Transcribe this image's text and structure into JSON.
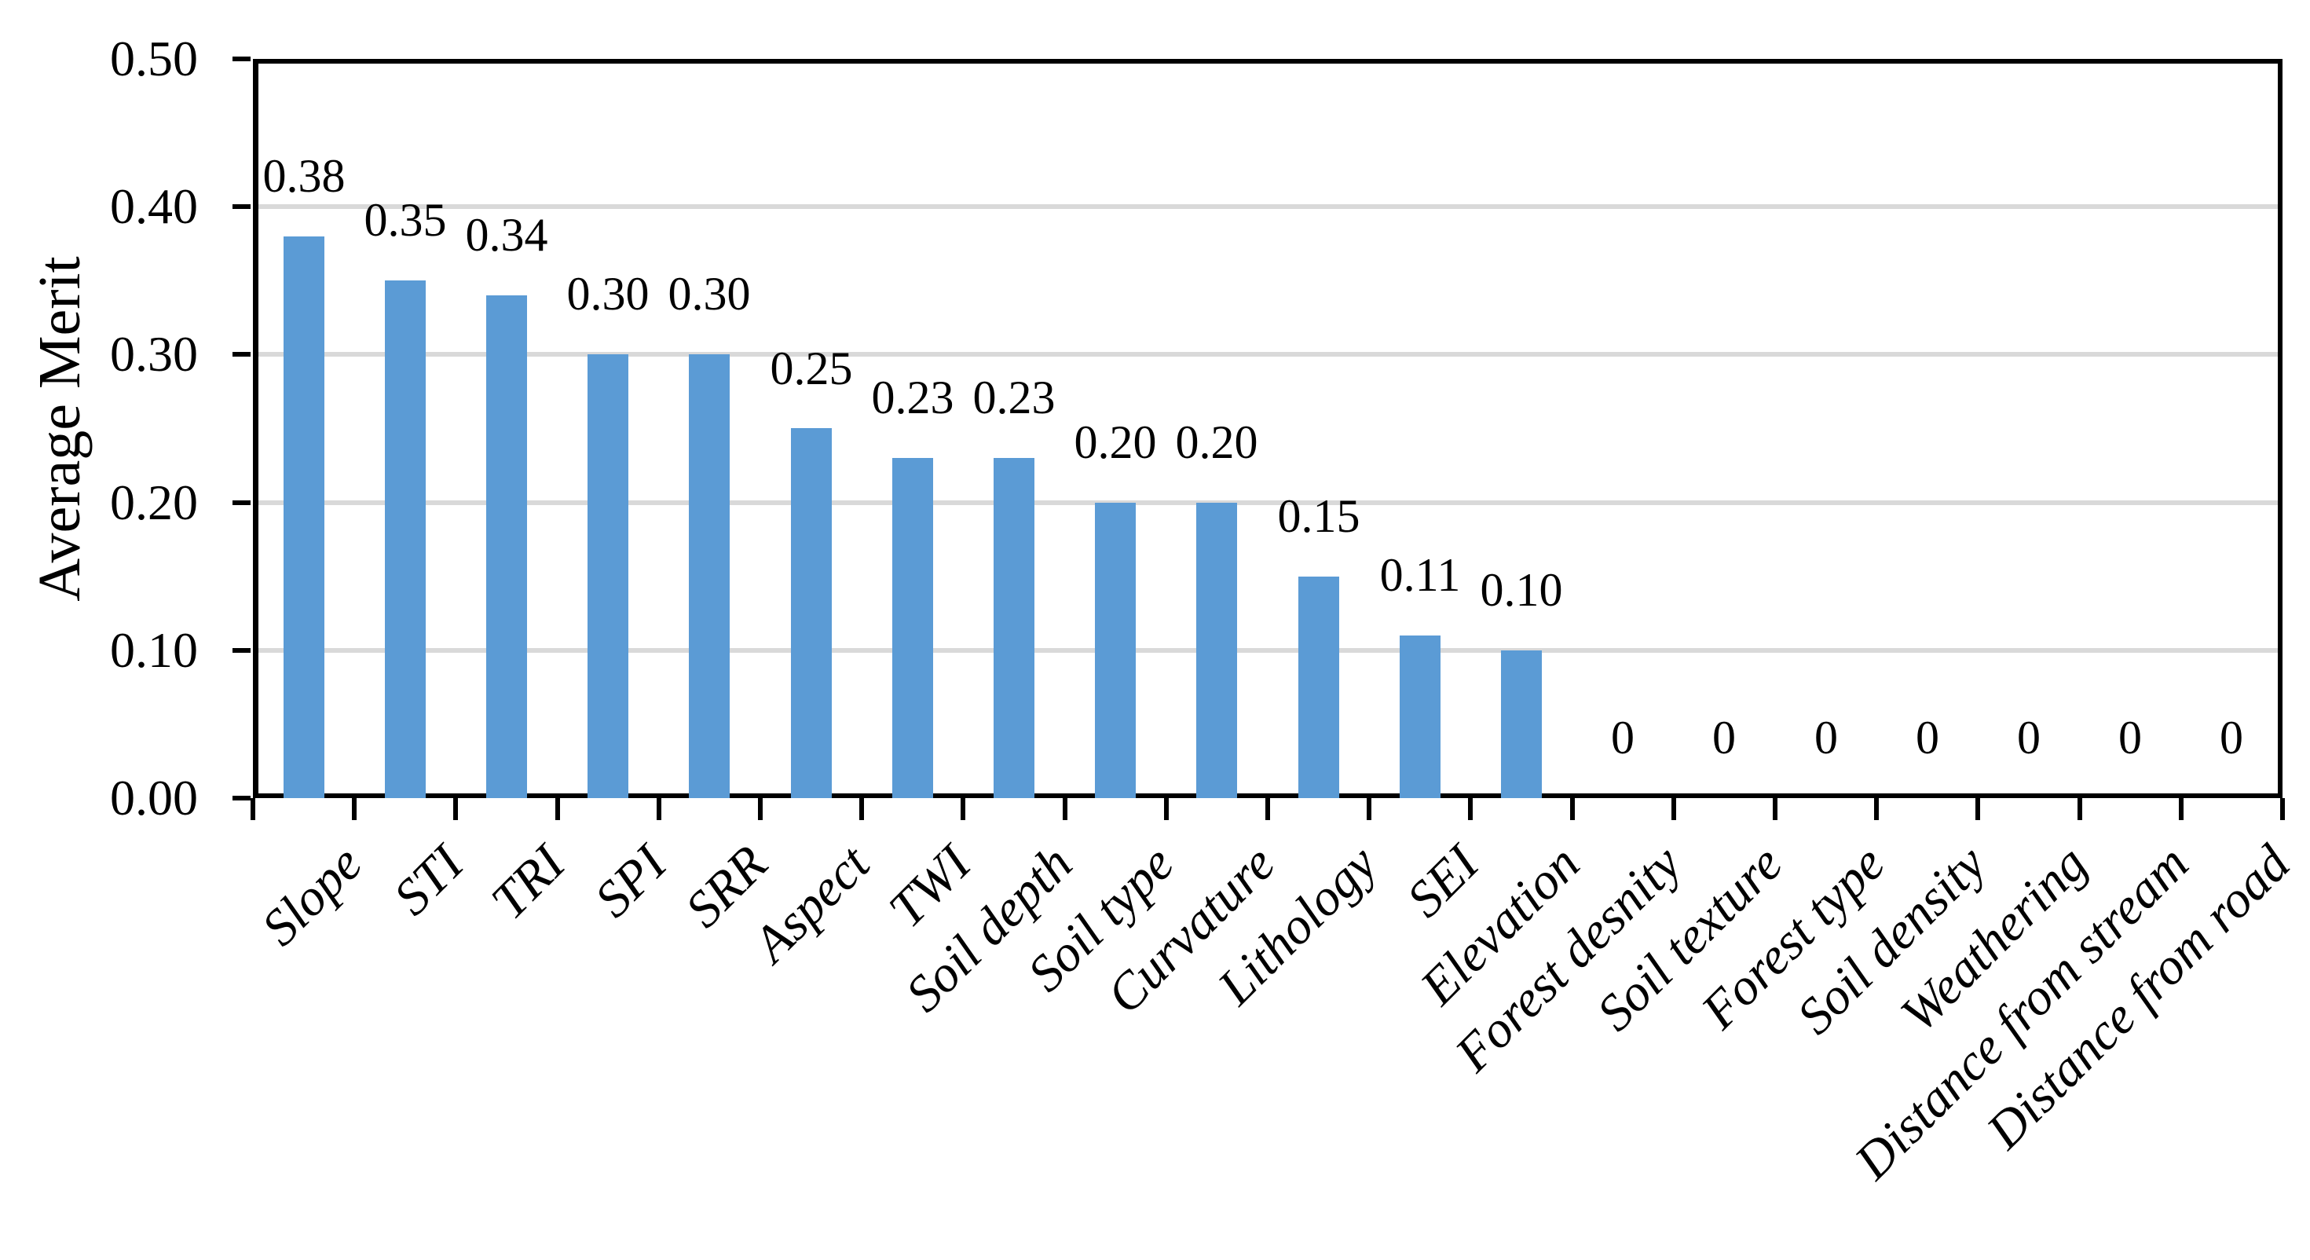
{
  "chart_data": {
    "type": "bar",
    "title": "",
    "xlabel": "",
    "ylabel": "Average Merit",
    "ylim": [
      0,
      0.5
    ],
    "ytick_step": 0.1,
    "ytick_labels": [
      "0.00",
      "0.10",
      "0.20",
      "0.30",
      "0.40",
      "0.50"
    ],
    "grid": true,
    "legend": false,
    "plot_border": true,
    "x_label_rotation_deg": 45,
    "categories": [
      "Slope",
      "STI",
      "TRI",
      "SPI",
      "SRR",
      "Aspect",
      "TWI",
      "Soil depth",
      "Soil type",
      "Curvature",
      "Lithology",
      "SEI",
      "Elevation",
      "Forest desnity",
      "Soil texture",
      "Forest type",
      "Soil density",
      "Weathering",
      "Distance from stream",
      "Distance from road"
    ],
    "values": [
      0.38,
      0.35,
      0.34,
      0.3,
      0.3,
      0.25,
      0.23,
      0.23,
      0.2,
      0.2,
      0.15,
      0.11,
      0.1,
      0,
      0,
      0,
      0,
      0,
      0,
      0
    ],
    "value_labels": [
      "0.38",
      "0.35",
      "0.34",
      "0.30",
      "0.30",
      "0.25",
      "0.23",
      "0.23",
      "0.20",
      "0.20",
      "0.15",
      "0.11",
      "0.10",
      "0",
      "0",
      "0",
      "0",
      "0",
      "0",
      "0"
    ],
    "colors": {
      "bar": "#5B9BD5",
      "gridline": "#D9D9D9",
      "axis": "#000000",
      "text": "#000000",
      "background": "#FFFFFF"
    }
  }
}
